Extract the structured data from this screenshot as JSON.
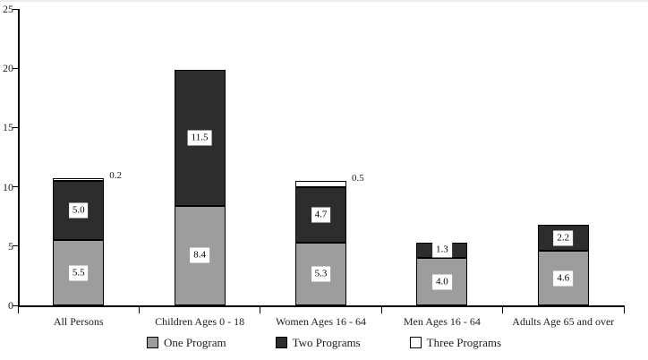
{
  "page": {
    "background": "#ffffff"
  },
  "chart_data": {
    "type": "bar",
    "stacked": true,
    "title": "",
    "xlabel": "",
    "ylabel": "",
    "categories": [
      "All Persons",
      "Children Ages 0 - 18",
      "Women Ages 16 - 64",
      "Men Ages 16 - 64",
      "Adults Age 65 and over"
    ],
    "series": [
      {
        "name": "One Program",
        "color": "#9d9d9d",
        "values": [
          5.5,
          8.4,
          5.3,
          4.0,
          4.6
        ]
      },
      {
        "name": "Two Programs",
        "color": "#2d2d2d",
        "values": [
          5.0,
          11.5,
          4.7,
          1.3,
          2.2
        ]
      },
      {
        "name": "Three Programs",
        "color": "#ffffff",
        "values": [
          0.2,
          0,
          0.5,
          0,
          0
        ]
      }
    ],
    "stack_totals": [
      10.7,
      19.9,
      10.5,
      5.3,
      6.8
    ],
    "ylim": [
      0,
      25
    ],
    "yticks": [
      0,
      5,
      10,
      15,
      20,
      25
    ],
    "grid": false,
    "legend_position": "bottom",
    "legend_entries": [
      "One Program",
      "Two Programs",
      "Three Programs"
    ],
    "value_labels": {
      "inside_series": [
        "One Program",
        "Two Programs"
      ],
      "outside_right_series": [
        "Three Programs"
      ],
      "decimals": 1
    },
    "colors": {
      "axis": "#000000",
      "bar_border": "#000000",
      "label_chip_background": "#ffffff",
      "text": "#1c1c1c"
    }
  }
}
